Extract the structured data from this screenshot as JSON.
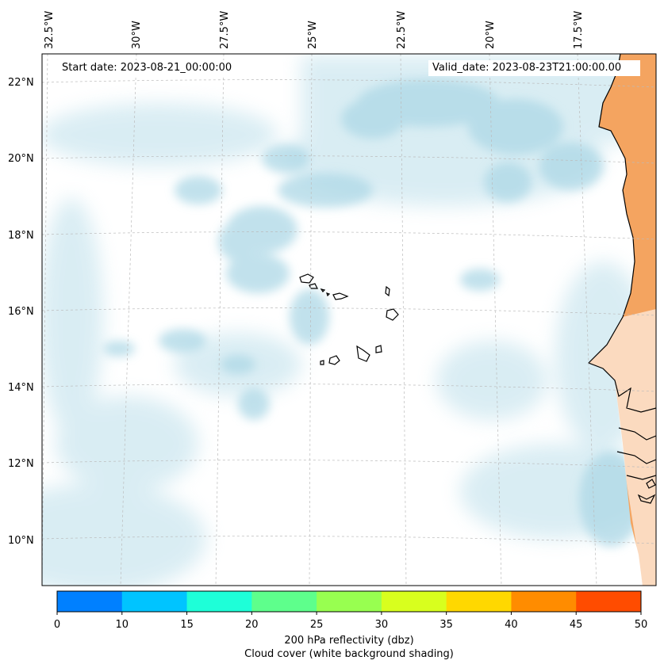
{
  "header": {
    "start_date": "Start date: 2023-08-21_00:00:00",
    "valid_date": "Valid_date: 2023-08-23T21:00:00.00"
  },
  "axes": {
    "lon_labels": [
      "32.5°W",
      "30°W",
      "27.5°W",
      "25°W",
      "22.5°W",
      "20°W",
      "17.5°W"
    ],
    "lat_labels": [
      "22°N",
      "20°N",
      "18°N",
      "16°N",
      "14°N",
      "12°N",
      "10°N"
    ]
  },
  "colorbar": {
    "ticks": [
      "0",
      "10",
      "15",
      "20",
      "25",
      "30",
      "35",
      "40",
      "45",
      "50"
    ],
    "colors": [
      "#0080ff",
      "#00c4ff",
      "#1effd8",
      "#5eff8c",
      "#98ff50",
      "#d8ff1e",
      "#ffd800",
      "#ff8c00",
      "#ff4c00"
    ],
    "label_line1": "200 hPa reflectivity (dbz)",
    "label_line2": "Cloud cover (white background shading)"
  },
  "map_colors": {
    "cloud_shading": "#add8e6",
    "land_fill": "#f4a460",
    "coastline": "#000000"
  }
}
